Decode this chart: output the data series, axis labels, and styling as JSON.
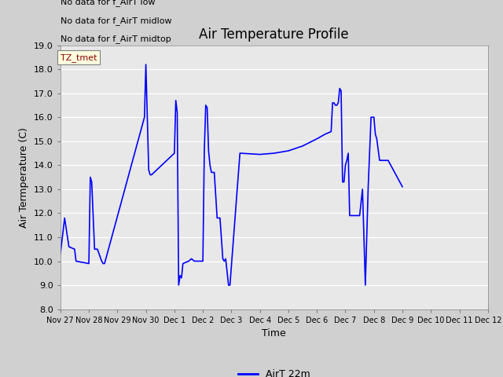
{
  "title": "Air Temperature Profile",
  "xlabel": "Time",
  "ylabel": "Air Termperature (C)",
  "line_color": "blue",
  "line_label": "AirT 22m",
  "ylim": [
    8.0,
    19.0
  ],
  "yticks": [
    8.0,
    9.0,
    10.0,
    11.0,
    12.0,
    13.0,
    14.0,
    15.0,
    16.0,
    17.0,
    18.0,
    19.0
  ],
  "annotations_top_left": [
    "No data for f_AirT low",
    "No data for f_AirT midlow",
    "No data for f_AirT midtop"
  ],
  "tz_label": "TZ_tmet",
  "x_dates": [
    "Nov 27",
    "Nov 28",
    "Nov 29",
    "Nov 30",
    "Dec 1",
    "Dec 2",
    "Dec 3",
    "Dec 4",
    "Dec 5",
    "Dec 6",
    "Dec 7",
    "Dec 8",
    "Dec 9",
    "Dec 10",
    "Dec 11",
    "Dec 12"
  ],
  "time_values": [
    0.0,
    0.15,
    0.3,
    0.5,
    0.55,
    1.0,
    1.05,
    1.1,
    1.2,
    1.3,
    1.45,
    1.5,
    1.55,
    2.95,
    3.0,
    3.05,
    3.1,
    3.15,
    3.2,
    4.0,
    4.05,
    4.1,
    4.15,
    4.2,
    4.25,
    4.3,
    4.5,
    4.6,
    4.7,
    4.75,
    5.0,
    5.05,
    5.1,
    5.15,
    5.2,
    5.25,
    5.3,
    5.4,
    5.5,
    5.55,
    5.6,
    5.7,
    5.75,
    5.8,
    5.9,
    5.95,
    6.3,
    7.0,
    7.5,
    8.0,
    8.5,
    9.0,
    9.3,
    9.5,
    9.55,
    9.6,
    9.65,
    9.7,
    9.75,
    9.8,
    9.85,
    9.9,
    9.95,
    10.0,
    10.05,
    10.1,
    10.15,
    10.5,
    10.6,
    10.7,
    10.8,
    10.9,
    11.0,
    11.05,
    11.1,
    11.2,
    11.5,
    12.0
  ],
  "temp_values": [
    10.3,
    11.8,
    10.6,
    10.5,
    10.0,
    9.9,
    13.5,
    13.3,
    10.5,
    10.5,
    10.0,
    9.9,
    9.9,
    16.0,
    18.2,
    16.0,
    13.8,
    13.6,
    13.6,
    14.5,
    16.7,
    16.2,
    9.0,
    9.4,
    9.3,
    9.9,
    10.0,
    10.1,
    10.0,
    10.0,
    10.0,
    14.6,
    16.5,
    16.4,
    14.6,
    14.0,
    13.7,
    13.7,
    11.8,
    11.8,
    11.8,
    10.1,
    10.0,
    10.1,
    9.0,
    9.0,
    14.5,
    14.45,
    14.5,
    14.6,
    14.8,
    15.1,
    15.3,
    15.4,
    16.6,
    16.6,
    16.5,
    16.5,
    16.6,
    17.2,
    17.1,
    13.3,
    13.3,
    14.0,
    14.2,
    14.5,
    11.9,
    11.9,
    13.0,
    9.0,
    13.1,
    16.0,
    16.0,
    15.3,
    15.1,
    14.2,
    14.2,
    13.1
  ]
}
